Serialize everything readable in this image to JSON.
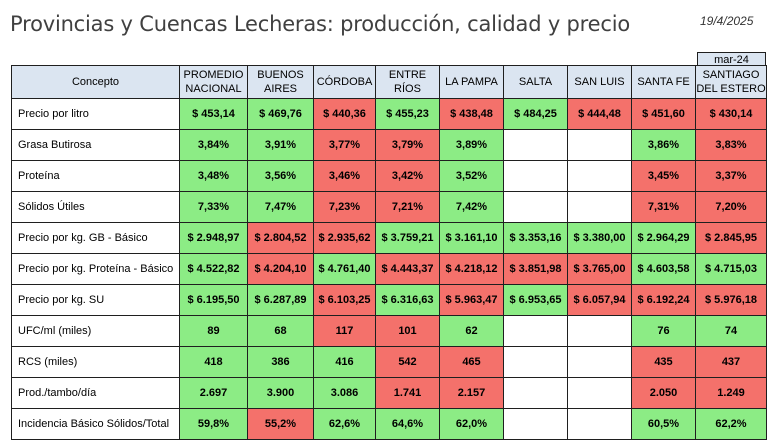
{
  "title": "Provincias y Cuencas Lecheras: producción, calidad y precio",
  "date": "19/4/2025",
  "period": "mar-24",
  "columns": [
    {
      "l1": "Concepto",
      "l2": ""
    },
    {
      "l1": "PROMEDIO",
      "l2": "NACIONAL"
    },
    {
      "l1": "BUENOS",
      "l2": "AIRES"
    },
    {
      "l1": "CÓRDOBA",
      "l2": ""
    },
    {
      "l1": "ENTRE RÍOS",
      "l2": ""
    },
    {
      "l1": "LA PAMPA",
      "l2": ""
    },
    {
      "l1": "SALTA",
      "l2": ""
    },
    {
      "l1": "SAN LUIS",
      "l2": ""
    },
    {
      "l1": "SANTA FE",
      "l2": ""
    },
    {
      "l1": "SANTIAGO",
      "l2": "DEL ESTERO"
    }
  ],
  "rows": [
    {
      "label": "Precio por litro",
      "cells": [
        {
          "v": "$ 453,14",
          "c": "g"
        },
        {
          "v": "$ 469,76",
          "c": "g"
        },
        {
          "v": "$ 440,36",
          "c": "r"
        },
        {
          "v": "$ 455,23",
          "c": "g"
        },
        {
          "v": "$ 438,48",
          "c": "r"
        },
        {
          "v": "$ 484,25",
          "c": "g"
        },
        {
          "v": "$ 444,48",
          "c": "r"
        },
        {
          "v": "$ 451,60",
          "c": "r"
        },
        {
          "v": "$ 430,14",
          "c": "r"
        }
      ]
    },
    {
      "label": "Grasa Butirosa",
      "cells": [
        {
          "v": "3,84%",
          "c": "g"
        },
        {
          "v": "3,91%",
          "c": "g"
        },
        {
          "v": "3,77%",
          "c": "r"
        },
        {
          "v": "3,79%",
          "c": "r"
        },
        {
          "v": "3,89%",
          "c": "g"
        },
        {
          "v": "",
          "c": "w"
        },
        {
          "v": "",
          "c": "w"
        },
        {
          "v": "3,86%",
          "c": "g"
        },
        {
          "v": "3,83%",
          "c": "r"
        }
      ]
    },
    {
      "label": "Proteína",
      "cells": [
        {
          "v": "3,48%",
          "c": "g"
        },
        {
          "v": "3,56%",
          "c": "g"
        },
        {
          "v": "3,46%",
          "c": "r"
        },
        {
          "v": "3,42%",
          "c": "r"
        },
        {
          "v": "3,52%",
          "c": "g"
        },
        {
          "v": "",
          "c": "w"
        },
        {
          "v": "",
          "c": "w"
        },
        {
          "v": "3,45%",
          "c": "r"
        },
        {
          "v": "3,37%",
          "c": "r"
        }
      ]
    },
    {
      "label": "Sólidos Útiles",
      "cells": [
        {
          "v": "7,33%",
          "c": "g"
        },
        {
          "v": "7,47%",
          "c": "g"
        },
        {
          "v": "7,23%",
          "c": "r"
        },
        {
          "v": "7,21%",
          "c": "r"
        },
        {
          "v": "7,42%",
          "c": "g"
        },
        {
          "v": "",
          "c": "w"
        },
        {
          "v": "",
          "c": "w"
        },
        {
          "v": "7,31%",
          "c": "r"
        },
        {
          "v": "7,20%",
          "c": "r"
        }
      ]
    },
    {
      "label": "Precio por kg. GB - Básico",
      "cells": [
        {
          "v": "$ 2.948,97",
          "c": "g"
        },
        {
          "v": "$ 2.804,52",
          "c": "r"
        },
        {
          "v": "$ 2.935,62",
          "c": "r"
        },
        {
          "v": "$ 3.759,21",
          "c": "g"
        },
        {
          "v": "$ 3.161,10",
          "c": "g"
        },
        {
          "v": "$ 3.353,16",
          "c": "g"
        },
        {
          "v": "$ 3.380,00",
          "c": "g"
        },
        {
          "v": "$ 2.964,29",
          "c": "g"
        },
        {
          "v": "$ 2.845,95",
          "c": "r"
        }
      ]
    },
    {
      "label": "Precio por kg. Proteína - Básico",
      "cells": [
        {
          "v": "$ 4.522,82",
          "c": "g"
        },
        {
          "v": "$ 4.204,10",
          "c": "r"
        },
        {
          "v": "$ 4.761,40",
          "c": "g"
        },
        {
          "v": "$ 4.443,37",
          "c": "r"
        },
        {
          "v": "$ 4.218,12",
          "c": "r"
        },
        {
          "v": "$ 3.851,98",
          "c": "r"
        },
        {
          "v": "$ 3.765,00",
          "c": "r"
        },
        {
          "v": "$ 4.603,58",
          "c": "g"
        },
        {
          "v": "$ 4.715,03",
          "c": "g"
        }
      ]
    },
    {
      "label": "Precio por kg. SU",
      "cells": [
        {
          "v": "$ 6.195,50",
          "c": "g"
        },
        {
          "v": "$ 6.287,89",
          "c": "g"
        },
        {
          "v": "$ 6.103,25",
          "c": "r"
        },
        {
          "v": "$ 6.316,63",
          "c": "g"
        },
        {
          "v": "$ 5.963,47",
          "c": "r"
        },
        {
          "v": "$ 6.953,65",
          "c": "g"
        },
        {
          "v": "$ 6.057,94",
          "c": "r"
        },
        {
          "v": "$ 6.192,24",
          "c": "r"
        },
        {
          "v": "$ 5.976,18",
          "c": "r"
        }
      ]
    },
    {
      "label": "UFC/ml (miles)",
      "cells": [
        {
          "v": "89",
          "c": "g"
        },
        {
          "v": "68",
          "c": "g"
        },
        {
          "v": "117",
          "c": "r"
        },
        {
          "v": "101",
          "c": "r"
        },
        {
          "v": "62",
          "c": "g"
        },
        {
          "v": "",
          "c": "w"
        },
        {
          "v": "",
          "c": "w"
        },
        {
          "v": "76",
          "c": "g"
        },
        {
          "v": "74",
          "c": "g"
        }
      ]
    },
    {
      "label": "RCS (miles)",
      "cells": [
        {
          "v": "418",
          "c": "g"
        },
        {
          "v": "386",
          "c": "g"
        },
        {
          "v": "416",
          "c": "g"
        },
        {
          "v": "542",
          "c": "r"
        },
        {
          "v": "465",
          "c": "r"
        },
        {
          "v": "",
          "c": "w"
        },
        {
          "v": "",
          "c": "w"
        },
        {
          "v": "435",
          "c": "r"
        },
        {
          "v": "437",
          "c": "r"
        }
      ]
    },
    {
      "label": "Prod./tambo/día",
      "cells": [
        {
          "v": "2.697",
          "c": "g"
        },
        {
          "v": "3.900",
          "c": "g"
        },
        {
          "v": "3.086",
          "c": "g"
        },
        {
          "v": "1.741",
          "c": "r"
        },
        {
          "v": "2.157",
          "c": "r"
        },
        {
          "v": "",
          "c": "w"
        },
        {
          "v": "",
          "c": "w"
        },
        {
          "v": "2.050",
          "c": "r"
        },
        {
          "v": "1.249",
          "c": "r"
        }
      ]
    },
    {
      "label": "Incidencia Básico Sólidos/Total",
      "cells": [
        {
          "v": "59,8%",
          "c": "g"
        },
        {
          "v": "55,2%",
          "c": "r"
        },
        {
          "v": "62,6%",
          "c": "g"
        },
        {
          "v": "64,6%",
          "c": "g"
        },
        {
          "v": "62,0%",
          "c": "g"
        },
        {
          "v": "",
          "c": "w"
        },
        {
          "v": "",
          "c": "w"
        },
        {
          "v": "60,5%",
          "c": "g"
        },
        {
          "v": "62,2%",
          "c": "g"
        }
      ]
    }
  ],
  "colors": {
    "above_average": "#8cec85",
    "below_average": "#f4716b",
    "header": "#dbe5f1"
  }
}
